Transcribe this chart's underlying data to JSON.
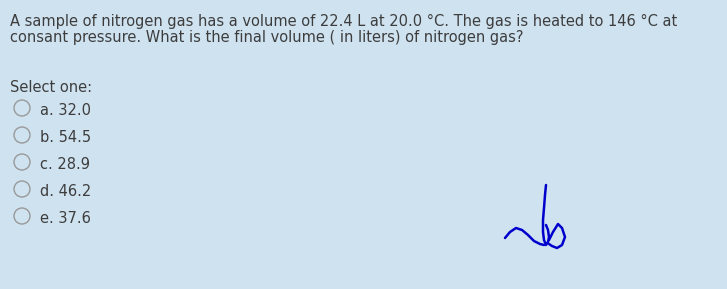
{
  "background_color": "#cfe2f0",
  "question_line1": "A sample of nitrogen gas has a volume of 22.4 L at 20.0 °C. The gas is heated to 146 °C at",
  "question_line2": "consant pressure. What is the final volume ( in liters) of nitrogen gas?",
  "select_label": "Select one:",
  "options": [
    "a. 32.0",
    "b. 54.5",
    "c. 28.9",
    "d. 46.2",
    "e. 37.6"
  ],
  "text_color": "#3d3d3d",
  "font_size_question": 10.5,
  "font_size_options": 10.5,
  "font_size_select": 10.5,
  "sig_color": "#0000cc",
  "sig_lw": 1.8
}
